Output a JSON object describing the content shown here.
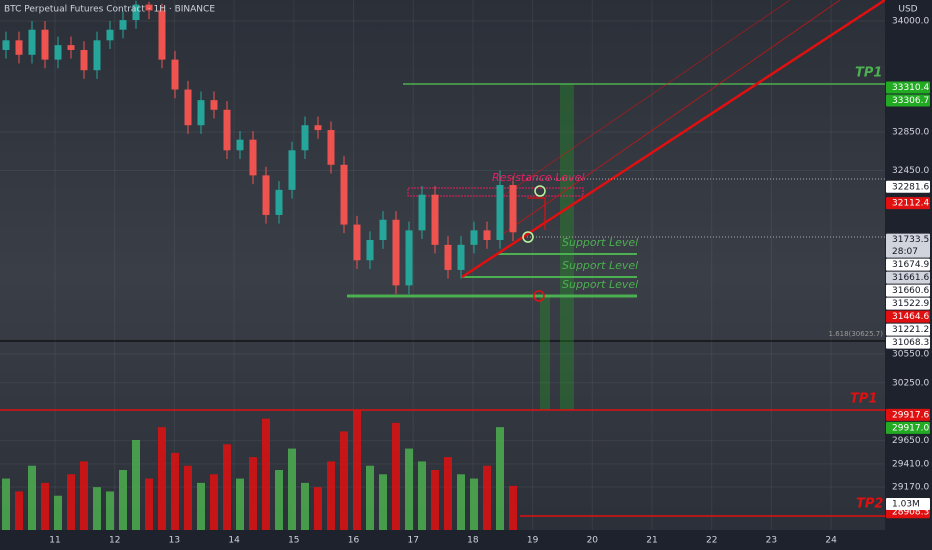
{
  "chart_data": {
    "type": "candlestick",
    "title": "BTC Perpetual Futures Contract · 1H · BINANCE",
    "currency": "USD",
    "xticks": [
      "11",
      "12",
      "13",
      "14",
      "15",
      "16",
      "17",
      "18",
      "19",
      "20",
      "21",
      "22",
      "23",
      "24"
    ],
    "ylim": [
      28724,
      34218
    ],
    "yticks": [
      {
        "value": 34000,
        "label": "34000.0"
      },
      {
        "value": 32850,
        "label": "32850.0"
      },
      {
        "value": 32450,
        "label": "32450.0"
      },
      {
        "value": 30550,
        "label": "30550.0"
      },
      {
        "value": 30250,
        "label": "30250.0"
      },
      {
        "value": 29650,
        "label": "29650.0"
      },
      {
        "value": 29410,
        "label": "29410.0"
      },
      {
        "value": 29170,
        "label": "29170.0"
      }
    ],
    "up_color": "#26a69a",
    "down_color": "#ef5350",
    "open": [
      33700,
      33800,
      33650,
      33910,
      33600,
      33750,
      33700,
      33490,
      33800,
      33910,
      34010,
      34170,
      34110,
      33600,
      33290,
      32920,
      33180,
      33080,
      32660,
      32770,
      32400,
      31990,
      32250,
      32660,
      32920,
      32870,
      32510,
      31890,
      31520,
      31730,
      31940,
      31260,
      31830,
      32200,
      31680,
      31420,
      31680,
      31830,
      31730,
      32300
    ],
    "high": [
      33890,
      33890,
      34000,
      34000,
      33840,
      33840,
      33790,
      33890,
      34000,
      34100,
      34210,
      34200,
      34180,
      33690,
      33380,
      33270,
      33270,
      33170,
      32860,
      32860,
      32490,
      32340,
      32750,
      33010,
      33010,
      32960,
      32600,
      31980,
      31820,
      32030,
      32030,
      31920,
      32290,
      32290,
      31770,
      31770,
      31920,
      31920,
      32450,
      32390
    ],
    "low": [
      33610,
      33560,
      33560,
      33510,
      33510,
      33610,
      33400,
      33400,
      33710,
      33820,
      33920,
      34020,
      33510,
      33200,
      32830,
      32830,
      32990,
      32570,
      32570,
      32310,
      31900,
      31900,
      32160,
      32570,
      32780,
      32420,
      31800,
      31430,
      31430,
      31640,
      31170,
      31170,
      31740,
      31590,
      31330,
      31330,
      31590,
      31640,
      31640,
      31720
    ],
    "close": [
      33800,
      33650,
      33910,
      33600,
      33750,
      33700,
      33490,
      33800,
      33910,
      34010,
      34170,
      34110,
      33600,
      33290,
      32920,
      33180,
      33080,
      32660,
      32770,
      32400,
      31990,
      32250,
      32660,
      32920,
      32870,
      32510,
      31890,
      31520,
      31730,
      31940,
      31260,
      31830,
      32200,
      31680,
      31420,
      31680,
      31830,
      31730,
      32300,
      31810
    ],
    "volume": [
      1.2,
      0.9,
      1.5,
      1.1,
      0.8,
      1.3,
      1.6,
      1.0,
      0.9,
      1.4,
      2.1,
      1.2,
      2.4,
      1.8,
      1.5,
      1.1,
      1.3,
      2.0,
      1.2,
      1.7,
      2.6,
      1.4,
      1.9,
      1.1,
      1.0,
      1.6,
      2.3,
      2.8,
      1.5,
      1.3,
      2.5,
      1.9,
      1.6,
      1.4,
      1.7,
      1.3,
      1.2,
      1.5,
      2.4,
      1.03
    ],
    "volume_tag": "1.03M",
    "price_tags": [
      {
        "value": 33310.4,
        "color": "#22ab22"
      },
      {
        "value": 33306.7,
        "color": "#22ab22"
      },
      {
        "value": 32281.6,
        "color": "#ffffff"
      },
      {
        "value": 32112.4,
        "color": "#e01010"
      },
      {
        "value": 31733.5,
        "color": "#d1d4dc",
        "sub": "28:07"
      },
      {
        "value": 31674.9,
        "color": "#ffffff"
      },
      {
        "value": 31661.6,
        "color": "#d1d4dc"
      },
      {
        "value": 31660.6,
        "color": "#ffffff"
      },
      {
        "value": 31522.9,
        "color": "#ffffff"
      },
      {
        "value": 31464.6,
        "color": "#e01010"
      },
      {
        "value": 31221.2,
        "color": "#ffffff"
      },
      {
        "value": 31068.3,
        "color": "#ffffff"
      },
      {
        "value": 29917.6,
        "color": "#e01010"
      },
      {
        "value": 29917,
        "label": "29917.0",
        "color": "#22ab22"
      },
      {
        "value": 28908.3,
        "color": "#e01010"
      }
    ],
    "annotations": {
      "tp1_top": "TP1",
      "tp1_mid": "TP1",
      "tp2": "TP2",
      "resistance": "Resistance Level",
      "support": [
        "Support Level",
        "Support Level",
        "Support Level"
      ],
      "fib": "1.618(30625.7)"
    }
  }
}
